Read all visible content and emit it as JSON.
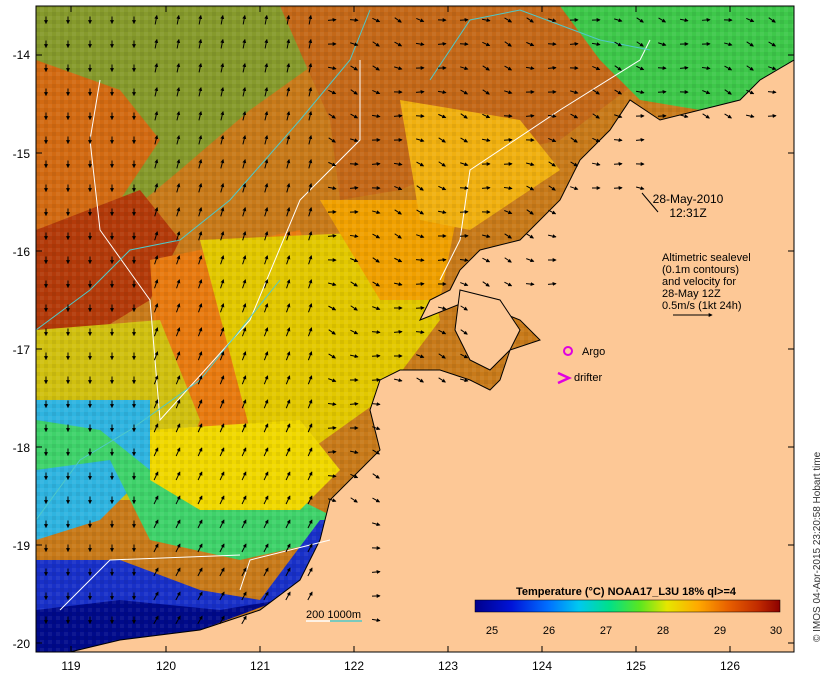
{
  "map": {
    "lon_ticks": [
      "119",
      "120",
      "121",
      "122",
      "123",
      "124",
      "125",
      "126"
    ],
    "lat_ticks": [
      "-14",
      "-15",
      "-16",
      "-17",
      "-18",
      "-19",
      "-20"
    ],
    "date_line1": "28-May-2010",
    "date_line2": "12:31Z",
    "altimetry": {
      "line1": "Altimetric sealevel",
      "line2": "(0.1m contours)",
      "line3": "and velocity for",
      "line4": "28-May 12Z",
      "line5": "0.5m/s (1kt 24h)"
    },
    "legend": {
      "argo": "Argo",
      "drifter": "drifter",
      "argo_color": "#e000e0",
      "drifter_color": "#e000e0"
    },
    "depth_label": "200  1000m",
    "depth_200_color": "#ffffff",
    "depth_1000_color": "#4fc9c9",
    "colorbar": {
      "title": "Temperature (°C) NOAA17_L3U 18% ql>=4",
      "ticks": [
        "25",
        "26",
        "27",
        "28",
        "29",
        "30"
      ],
      "min": 25,
      "max": 30
    },
    "land_color": "#fdc896",
    "copyright": "© IMOS 04-Apr-2015 23:20:58 Hobart time"
  }
}
